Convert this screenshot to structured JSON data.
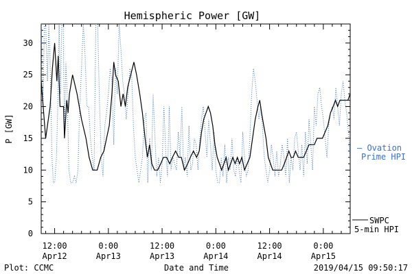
{
  "chart_data": {
    "type": "line",
    "title": "Hemispheric Power [GW]",
    "xlabel": "Date and Time",
    "ylabel": "P [GW]",
    "ylim": [
      0,
      33
    ],
    "yticks": [
      0,
      5,
      10,
      15,
      20,
      25,
      30
    ],
    "xlim_hours": [
      -15,
      54
    ],
    "xticks": [
      {
        "h": -12,
        "l1": "12:00",
        "l2": "Apr12"
      },
      {
        "h": 0,
        "l1": "0:00",
        "l2": "Apr13"
      },
      {
        "h": 12,
        "l1": "12:00",
        "l2": "Apr13"
      },
      {
        "h": 24,
        "l1": "0:00",
        "l2": "Apr14"
      },
      {
        "h": 36,
        "l1": "12:00",
        "l2": "Apr14"
      },
      {
        "h": 48,
        "l1": "0:00",
        "l2": "Apr15"
      }
    ],
    "grid": false,
    "series": [
      {
        "name": "SWPC 5-min HPI",
        "color": "#000000",
        "style": "solid",
        "points": [
          [
            -15,
            24
          ],
          [
            -14,
            15
          ],
          [
            -13,
            20
          ],
          [
            -12.5,
            26
          ],
          [
            -12,
            30
          ],
          [
            -11.5,
            24
          ],
          [
            -11.2,
            28
          ],
          [
            -10.8,
            20
          ],
          [
            -10.3,
            20
          ],
          [
            -10,
            20
          ],
          [
            -9.8,
            15
          ],
          [
            -9.3,
            21
          ],
          [
            -9,
            19
          ],
          [
            -8.7,
            22
          ],
          [
            -8,
            25
          ],
          [
            -7,
            22
          ],
          [
            -6,
            18
          ],
          [
            -5,
            15
          ],
          [
            -4.3,
            12
          ],
          [
            -3.5,
            10
          ],
          [
            -2.5,
            10
          ],
          [
            -1.7,
            12
          ],
          [
            -1,
            13
          ],
          [
            -0.4,
            15
          ],
          [
            0.2,
            17
          ],
          [
            0.8,
            22
          ],
          [
            1.2,
            27
          ],
          [
            1.6,
            25
          ],
          [
            2.2,
            24
          ],
          [
            2.8,
            20
          ],
          [
            3.3,
            22
          ],
          [
            3.8,
            20
          ],
          [
            4.3,
            23
          ],
          [
            5,
            25
          ],
          [
            5.7,
            27
          ],
          [
            6.3,
            25
          ],
          [
            7,
            22
          ],
          [
            7.6,
            19
          ],
          [
            8.2,
            15
          ],
          [
            8.7,
            12
          ],
          [
            9.2,
            14
          ],
          [
            9.7,
            11
          ],
          [
            10.3,
            10
          ],
          [
            11,
            10
          ],
          [
            11.7,
            11
          ],
          [
            12.3,
            12
          ],
          [
            13,
            12
          ],
          [
            13.7,
            11
          ],
          [
            14.3,
            12
          ],
          [
            15,
            13
          ],
          [
            15.7,
            12
          ],
          [
            16.3,
            12
          ],
          [
            17,
            10
          ],
          [
            17.7,
            11
          ],
          [
            18.3,
            12
          ],
          [
            19,
            13
          ],
          [
            19.7,
            12
          ],
          [
            20.3,
            13
          ],
          [
            20.8,
            16
          ],
          [
            21.3,
            18
          ],
          [
            21.8,
            19
          ],
          [
            22.3,
            20
          ],
          [
            22.8,
            19
          ],
          [
            23.3,
            17
          ],
          [
            23.8,
            14
          ],
          [
            24.3,
            12
          ],
          [
            24.8,
            11
          ],
          [
            25.3,
            10
          ],
          [
            25.8,
            11
          ],
          [
            26.3,
            12
          ],
          [
            26.8,
            10
          ],
          [
            27.3,
            11
          ],
          [
            27.8,
            12
          ],
          [
            28.3,
            11
          ],
          [
            28.8,
            12
          ],
          [
            29.3,
            11
          ],
          [
            29.8,
            12
          ],
          [
            30.4,
            10
          ],
          [
            31,
            11
          ],
          [
            31.6,
            12
          ],
          [
            32.2,
            15
          ],
          [
            32.8,
            18
          ],
          [
            33.4,
            20
          ],
          [
            33.8,
            21
          ],
          [
            34.2,
            19
          ],
          [
            34.7,
            17
          ],
          [
            35.2,
            15
          ],
          [
            35.7,
            12
          ],
          [
            36.2,
            11
          ],
          [
            36.7,
            10
          ],
          [
            37.3,
            10
          ],
          [
            38,
            10
          ],
          [
            38.7,
            10
          ],
          [
            39.3,
            11
          ],
          [
            39.8,
            12
          ],
          [
            40.3,
            13
          ],
          [
            40.8,
            12
          ],
          [
            41.3,
            12
          ],
          [
            41.8,
            13
          ],
          [
            42.4,
            12
          ],
          [
            43,
            12
          ],
          [
            43.6,
            12
          ],
          [
            44.2,
            13
          ],
          [
            44.8,
            14
          ],
          [
            45.4,
            14
          ],
          [
            46,
            14
          ],
          [
            46.6,
            15
          ],
          [
            47.2,
            15
          ],
          [
            47.8,
            15
          ],
          [
            48.4,
            16
          ],
          [
            49,
            17
          ],
          [
            49.6,
            19
          ],
          [
            50.2,
            20
          ],
          [
            50.7,
            21
          ],
          [
            51.2,
            20
          ],
          [
            51.7,
            21
          ],
          [
            52.3,
            21
          ],
          [
            52.9,
            21
          ],
          [
            53.5,
            21
          ],
          [
            54,
            22
          ],
          [
            54.5,
            22
          ],
          [
            55,
            21
          ],
          [
            55.5,
            20
          ],
          [
            55.9,
            19
          ],
          [
            56.3,
            17
          ],
          [
            56.7,
            18
          ],
          [
            57,
            22
          ],
          [
            57.3,
            25
          ],
          [
            57.6,
            23
          ]
        ]
      },
      {
        "name": "Ovation Prime HPI",
        "color": "#3a70c8",
        "style": "dotted",
        "points": [
          [
            -15,
            33
          ],
          [
            -14.6,
            20
          ],
          [
            -14.3,
            33
          ],
          [
            -14,
            33
          ],
          [
            -13.6,
            24
          ],
          [
            -13.3,
            33
          ],
          [
            -13,
            27
          ],
          [
            -12.6,
            12
          ],
          [
            -12.3,
            8
          ],
          [
            -12,
            8
          ],
          [
            -11.6,
            12
          ],
          [
            -11.3,
            20
          ],
          [
            -11,
            33
          ],
          [
            -10.7,
            22
          ],
          [
            -10.4,
            33
          ],
          [
            -10.1,
            33
          ],
          [
            -9.8,
            16
          ],
          [
            -9.5,
            27
          ],
          [
            -9.2,
            22
          ],
          [
            -8.8,
            10
          ],
          [
            -8.4,
            8
          ],
          [
            -8,
            8
          ],
          [
            -7.6,
            9
          ],
          [
            -7.2,
            8
          ],
          [
            -6.8,
            10
          ],
          [
            -6.4,
            20
          ],
          [
            -6,
            26
          ],
          [
            -5.6,
            33
          ],
          [
            -5.2,
            28
          ],
          [
            -4.8,
            20
          ],
          [
            -4.4,
            20
          ],
          [
            -4,
            15
          ],
          [
            -3.6,
            12
          ],
          [
            -3.2,
            10
          ],
          [
            -2.8,
            33
          ],
          [
            -2.4,
            33
          ],
          [
            -2,
            21
          ],
          [
            -1.6,
            12
          ],
          [
            -1.2,
            9
          ],
          [
            -0.8,
            17
          ],
          [
            -0.4,
            19
          ],
          [
            0,
            22
          ],
          [
            0.4,
            26
          ],
          [
            0.8,
            24
          ],
          [
            1.2,
            14
          ],
          [
            1.6,
            26
          ],
          [
            2,
            22
          ],
          [
            2.4,
            33
          ],
          [
            2.8,
            29
          ],
          [
            3.2,
            24
          ],
          [
            3.6,
            22
          ],
          [
            4,
            18
          ],
          [
            4.4,
            22
          ],
          [
            4.8,
            26
          ],
          [
            5.2,
            25
          ],
          [
            5.6,
            17
          ],
          [
            6,
            12
          ],
          [
            6.4,
            10
          ],
          [
            6.8,
            8
          ],
          [
            7.2,
            10
          ],
          [
            7.6,
            12
          ],
          [
            8,
            18
          ],
          [
            8.4,
            19
          ],
          [
            8.8,
            8
          ],
          [
            9.2,
            15
          ],
          [
            9.6,
            10
          ],
          [
            10,
            22
          ],
          [
            10.4,
            15
          ],
          [
            10.8,
            9
          ],
          [
            11.2,
            12
          ],
          [
            11.6,
            8
          ],
          [
            12,
            11
          ],
          [
            12.4,
            20
          ],
          [
            12.8,
            13
          ],
          [
            13.2,
            9
          ],
          [
            13.6,
            20
          ],
          [
            14,
            10
          ],
          [
            14.4,
            12
          ],
          [
            14.8,
            11
          ],
          [
            15.2,
            10
          ],
          [
            15.6,
            16
          ],
          [
            16,
            12
          ],
          [
            16.4,
            20
          ],
          [
            16.8,
            10
          ],
          [
            17.2,
            12
          ],
          [
            17.6,
            9
          ],
          [
            18,
            17
          ],
          [
            18.4,
            10
          ],
          [
            18.8,
            11
          ],
          [
            19.2,
            15
          ],
          [
            19.6,
            14
          ],
          [
            20,
            10
          ],
          [
            20.4,
            15
          ],
          [
            20.8,
            18
          ],
          [
            21.2,
            20
          ],
          [
            21.6,
            16
          ],
          [
            22,
            12
          ],
          [
            22.4,
            18
          ],
          [
            22.8,
            14
          ],
          [
            23.2,
            10
          ],
          [
            23.6,
            16
          ],
          [
            24,
            10
          ],
          [
            24.4,
            8
          ],
          [
            24.8,
            8
          ],
          [
            25.2,
            12
          ],
          [
            25.6,
            9
          ],
          [
            26,
            14
          ],
          [
            26.4,
            8
          ],
          [
            26.8,
            12
          ],
          [
            27.2,
            10
          ],
          [
            27.6,
            15
          ],
          [
            28,
            10
          ],
          [
            28.4,
            9
          ],
          [
            28.8,
            12
          ],
          [
            29.2,
            10
          ],
          [
            29.6,
            8
          ],
          [
            30,
            16
          ],
          [
            30.4,
            12
          ],
          [
            30.8,
            9
          ],
          [
            31.2,
            10
          ],
          [
            31.6,
            15
          ],
          [
            32,
            22
          ],
          [
            32.4,
            26
          ],
          [
            32.8,
            24
          ],
          [
            33.2,
            21
          ],
          [
            33.6,
            18
          ],
          [
            34,
            20
          ],
          [
            34.4,
            17
          ],
          [
            34.8,
            12
          ],
          [
            35.2,
            10
          ],
          [
            35.6,
            8
          ],
          [
            36,
            10
          ],
          [
            36.4,
            14
          ],
          [
            36.8,
            12
          ],
          [
            37.2,
            9
          ],
          [
            37.6,
            13
          ],
          [
            38,
            9
          ],
          [
            38.4,
            11
          ],
          [
            38.8,
            14
          ],
          [
            39.2,
            12
          ],
          [
            39.6,
            9
          ],
          [
            40,
            15
          ],
          [
            40.4,
            8
          ],
          [
            40.8,
            12
          ],
          [
            41.2,
            10
          ],
          [
            41.6,
            15
          ],
          [
            42,
            16
          ],
          [
            42.4,
            13
          ],
          [
            42.8,
            10
          ],
          [
            43.2,
            14
          ],
          [
            43.6,
            9
          ],
          [
            44,
            16
          ],
          [
            44.4,
            11
          ],
          [
            44.8,
            18
          ],
          [
            45.2,
            14
          ],
          [
            45.6,
            10
          ],
          [
            46,
            20
          ],
          [
            46.4,
            17
          ],
          [
            46.8,
            22
          ],
          [
            47.2,
            23
          ],
          [
            47.6,
            20
          ],
          [
            48,
            18
          ],
          [
            48.4,
            15
          ],
          [
            48.8,
            12
          ],
          [
            49.2,
            17
          ],
          [
            49.6,
            19
          ],
          [
            50,
            20
          ],
          [
            50.4,
            18
          ],
          [
            50.8,
            23
          ],
          [
            51.2,
            20
          ],
          [
            51.6,
            17
          ],
          [
            52,
            22
          ],
          [
            52.4,
            24
          ],
          [
            52.8,
            21
          ],
          [
            53.2,
            19
          ],
          [
            53.6,
            16
          ],
          [
            54,
            11
          ],
          [
            54.4,
            15
          ],
          [
            54.8,
            20
          ],
          [
            55.2,
            26
          ],
          [
            55.6,
            33
          ],
          [
            56,
            30
          ],
          [
            56.4,
            33
          ],
          [
            56.8,
            28
          ],
          [
            57.2,
            26
          ],
          [
            57.6,
            24
          ]
        ]
      }
    ],
    "legend": {
      "placement": "right",
      "swpc_line1": "SWPC",
      "swpc_line2": "5-min HPI",
      "ovation_line1": "— Ovation",
      "ovation_line2": "Prime HPI"
    }
  },
  "footer": {
    "left": "Plot: CCMC",
    "center": "Date and Time",
    "right": "2019/04/15 09:50:17"
  }
}
